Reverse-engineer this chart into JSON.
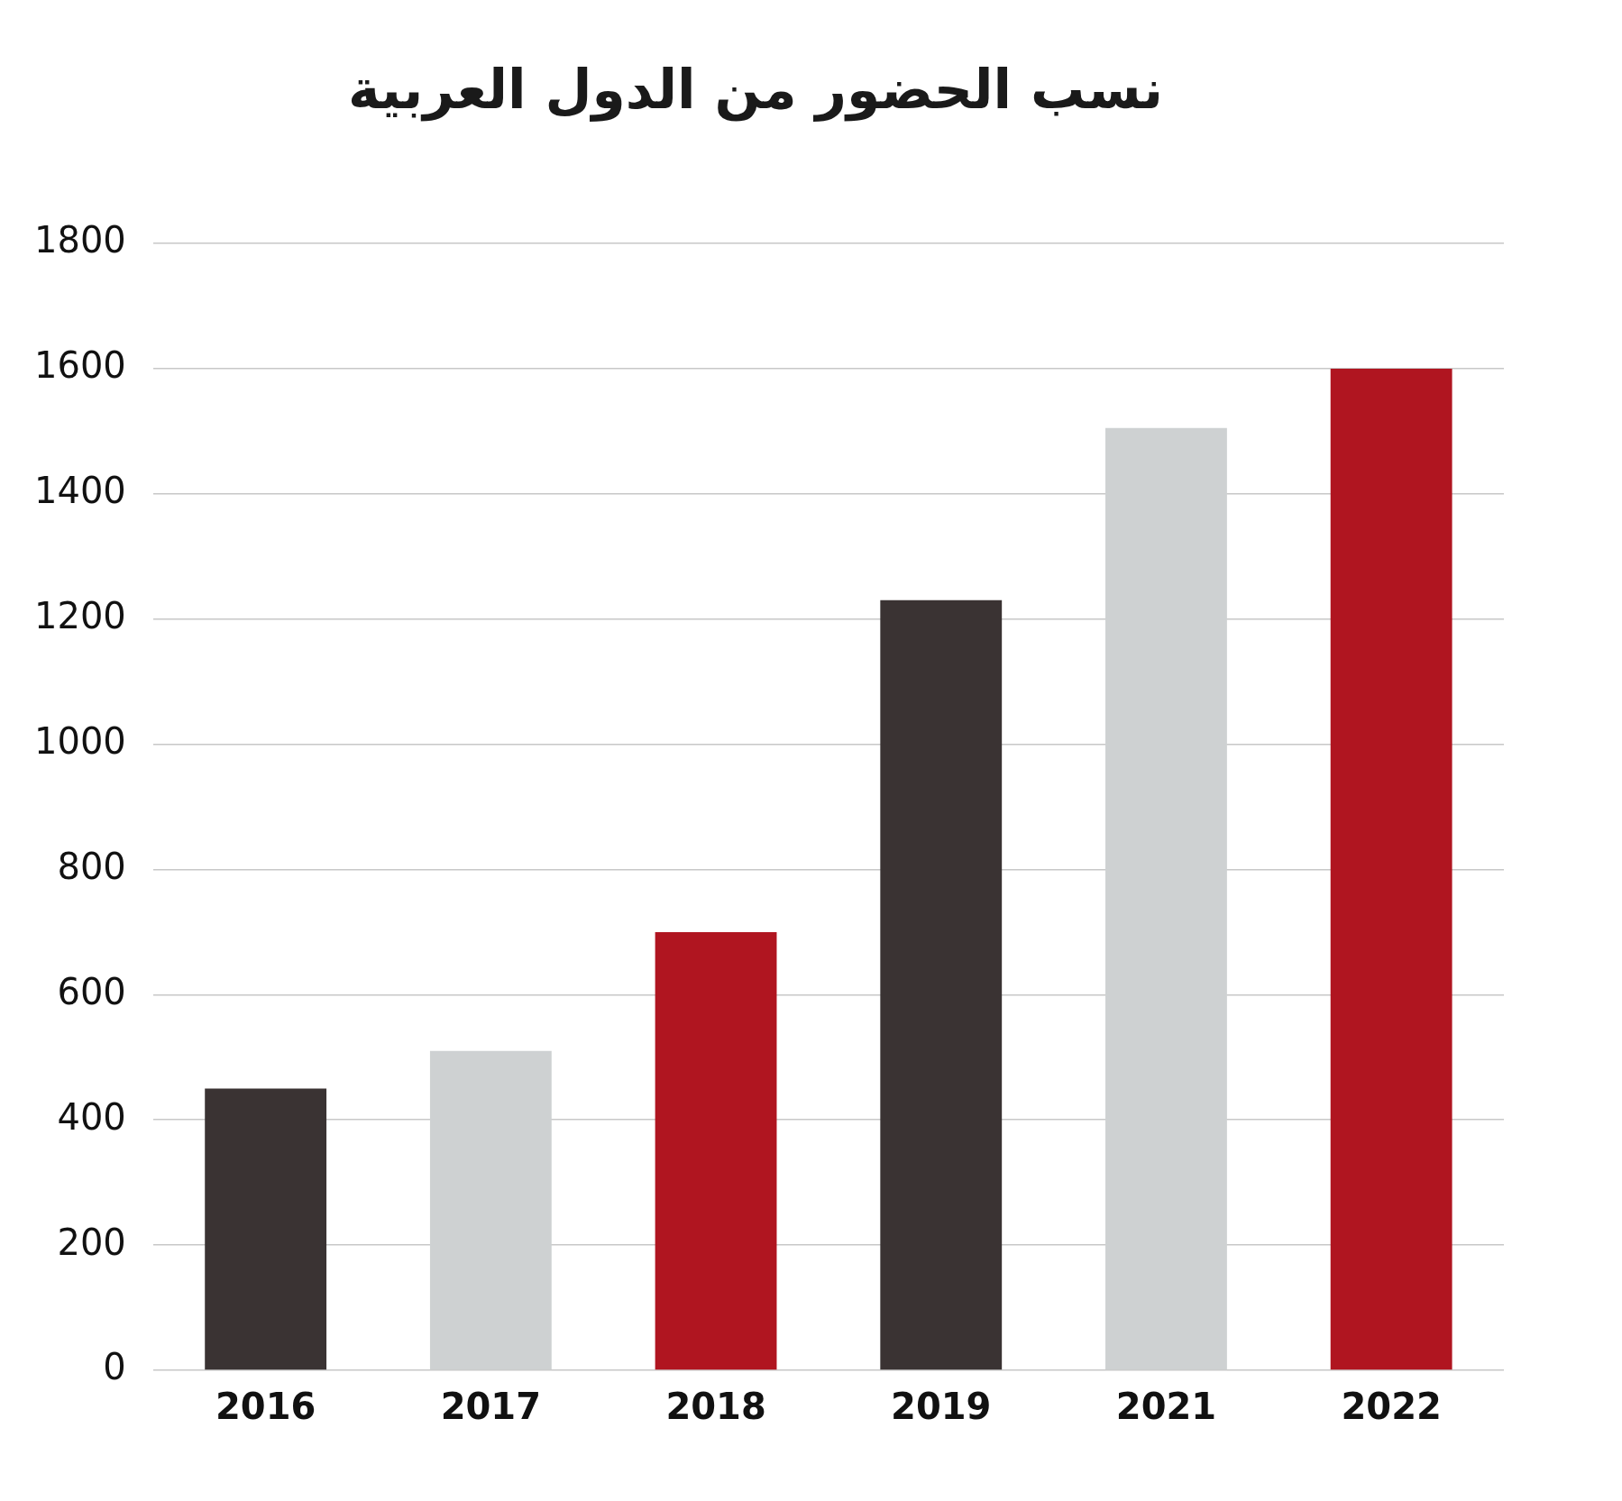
{
  "chart_data": {
    "type": "bar",
    "title": "نسب الحضور من الدول العربية",
    "categories": [
      "2016",
      "2017",
      "2018",
      "2019",
      "2021",
      "2022"
    ],
    "values": [
      450,
      510,
      700,
      1230,
      1505,
      1600
    ],
    "colors": [
      "#3a3333",
      "#ced1d2",
      "#b01520",
      "#3a3333",
      "#ced1d2",
      "#b01520"
    ],
    "ylim": [
      0,
      1800
    ],
    "yticks": [
      0,
      200,
      400,
      600,
      800,
      1000,
      1200,
      1400,
      1600,
      1800
    ],
    "grid": "y",
    "legend": false
  }
}
